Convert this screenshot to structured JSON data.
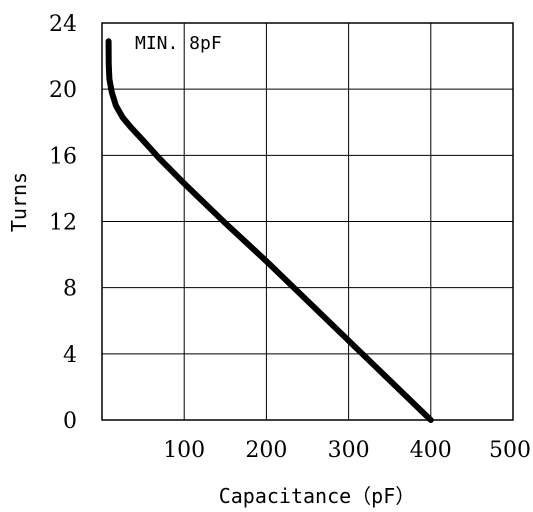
{
  "chart_data": {
    "type": "line",
    "title": "",
    "xlabel": "Capacitance（pF）",
    "ylabel": "Turns",
    "xlim": [
      0,
      500
    ],
    "ylim": [
      0,
      24
    ],
    "xticks": [
      100,
      200,
      300,
      400,
      500
    ],
    "yticks": [
      0,
      4,
      8,
      12,
      16,
      20,
      24
    ],
    "grid": true,
    "annotation": "MIN. 8pF",
    "series": [
      {
        "color": "#000000",
        "x": [
          8,
          8.2,
          9,
          12,
          17,
          25,
          35,
          50,
          70,
          100,
          150,
          200,
          250,
          300,
          350,
          400
        ],
        "y": [
          22.9,
          21.5,
          20.6,
          19.8,
          19.0,
          18.3,
          17.7,
          16.9,
          15.8,
          14.3,
          11.9,
          9.6,
          7.2,
          4.8,
          2.4,
          0
        ]
      }
    ]
  }
}
